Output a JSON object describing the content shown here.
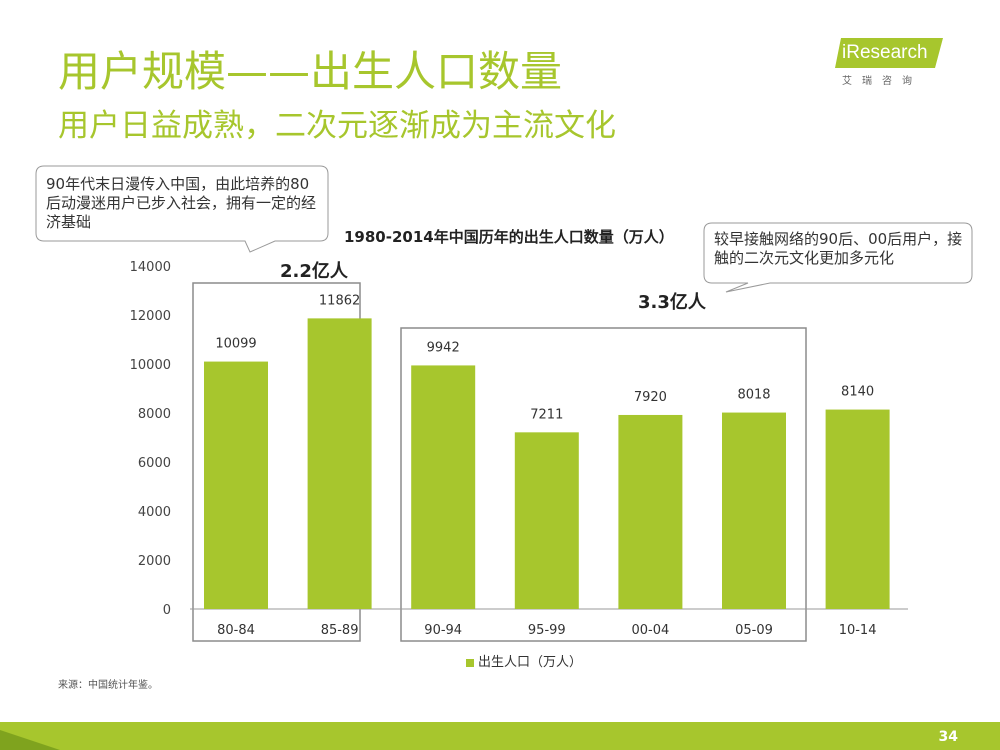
{
  "header": {
    "title": "用户规模——出生人口数量",
    "subtitle": "用户日益成熟，二次元逐渐成为主流文化"
  },
  "logo": {
    "name": "iResearch",
    "sub": "艾瑞咨询"
  },
  "callouts": {
    "left": "90年代末日漫传入中国，由此培养的80后动漫迷用户已步入社会，拥有一定的经济基础",
    "right": "较早接触网络的90后、00后用户，接触的二次元文化更加多元化"
  },
  "group_labels": {
    "g1": "2.2亿人",
    "g2": "3.3亿人"
  },
  "source": "来源：中国统计年鉴。",
  "page_number": "34",
  "colors": {
    "accent": "#a7c62d",
    "bar": "#a7c62d"
  },
  "chart_data": {
    "type": "bar",
    "title": "1980-2014年中国历年的出生人口数量（万人）",
    "categories": [
      "80-84",
      "85-89",
      "90-94",
      "95-99",
      "00-04",
      "05-09",
      "10-14"
    ],
    "series": [
      {
        "name": "出生人口（万人）",
        "values": [
          10099,
          11862,
          9942,
          7211,
          7920,
          8018,
          8140
        ]
      }
    ],
    "yticks": [
      "0",
      "2000",
      "4000",
      "6000",
      "8000",
      "10000",
      "12000",
      "14000"
    ],
    "ylim": [
      0,
      14000
    ],
    "legend": "bottom"
  }
}
